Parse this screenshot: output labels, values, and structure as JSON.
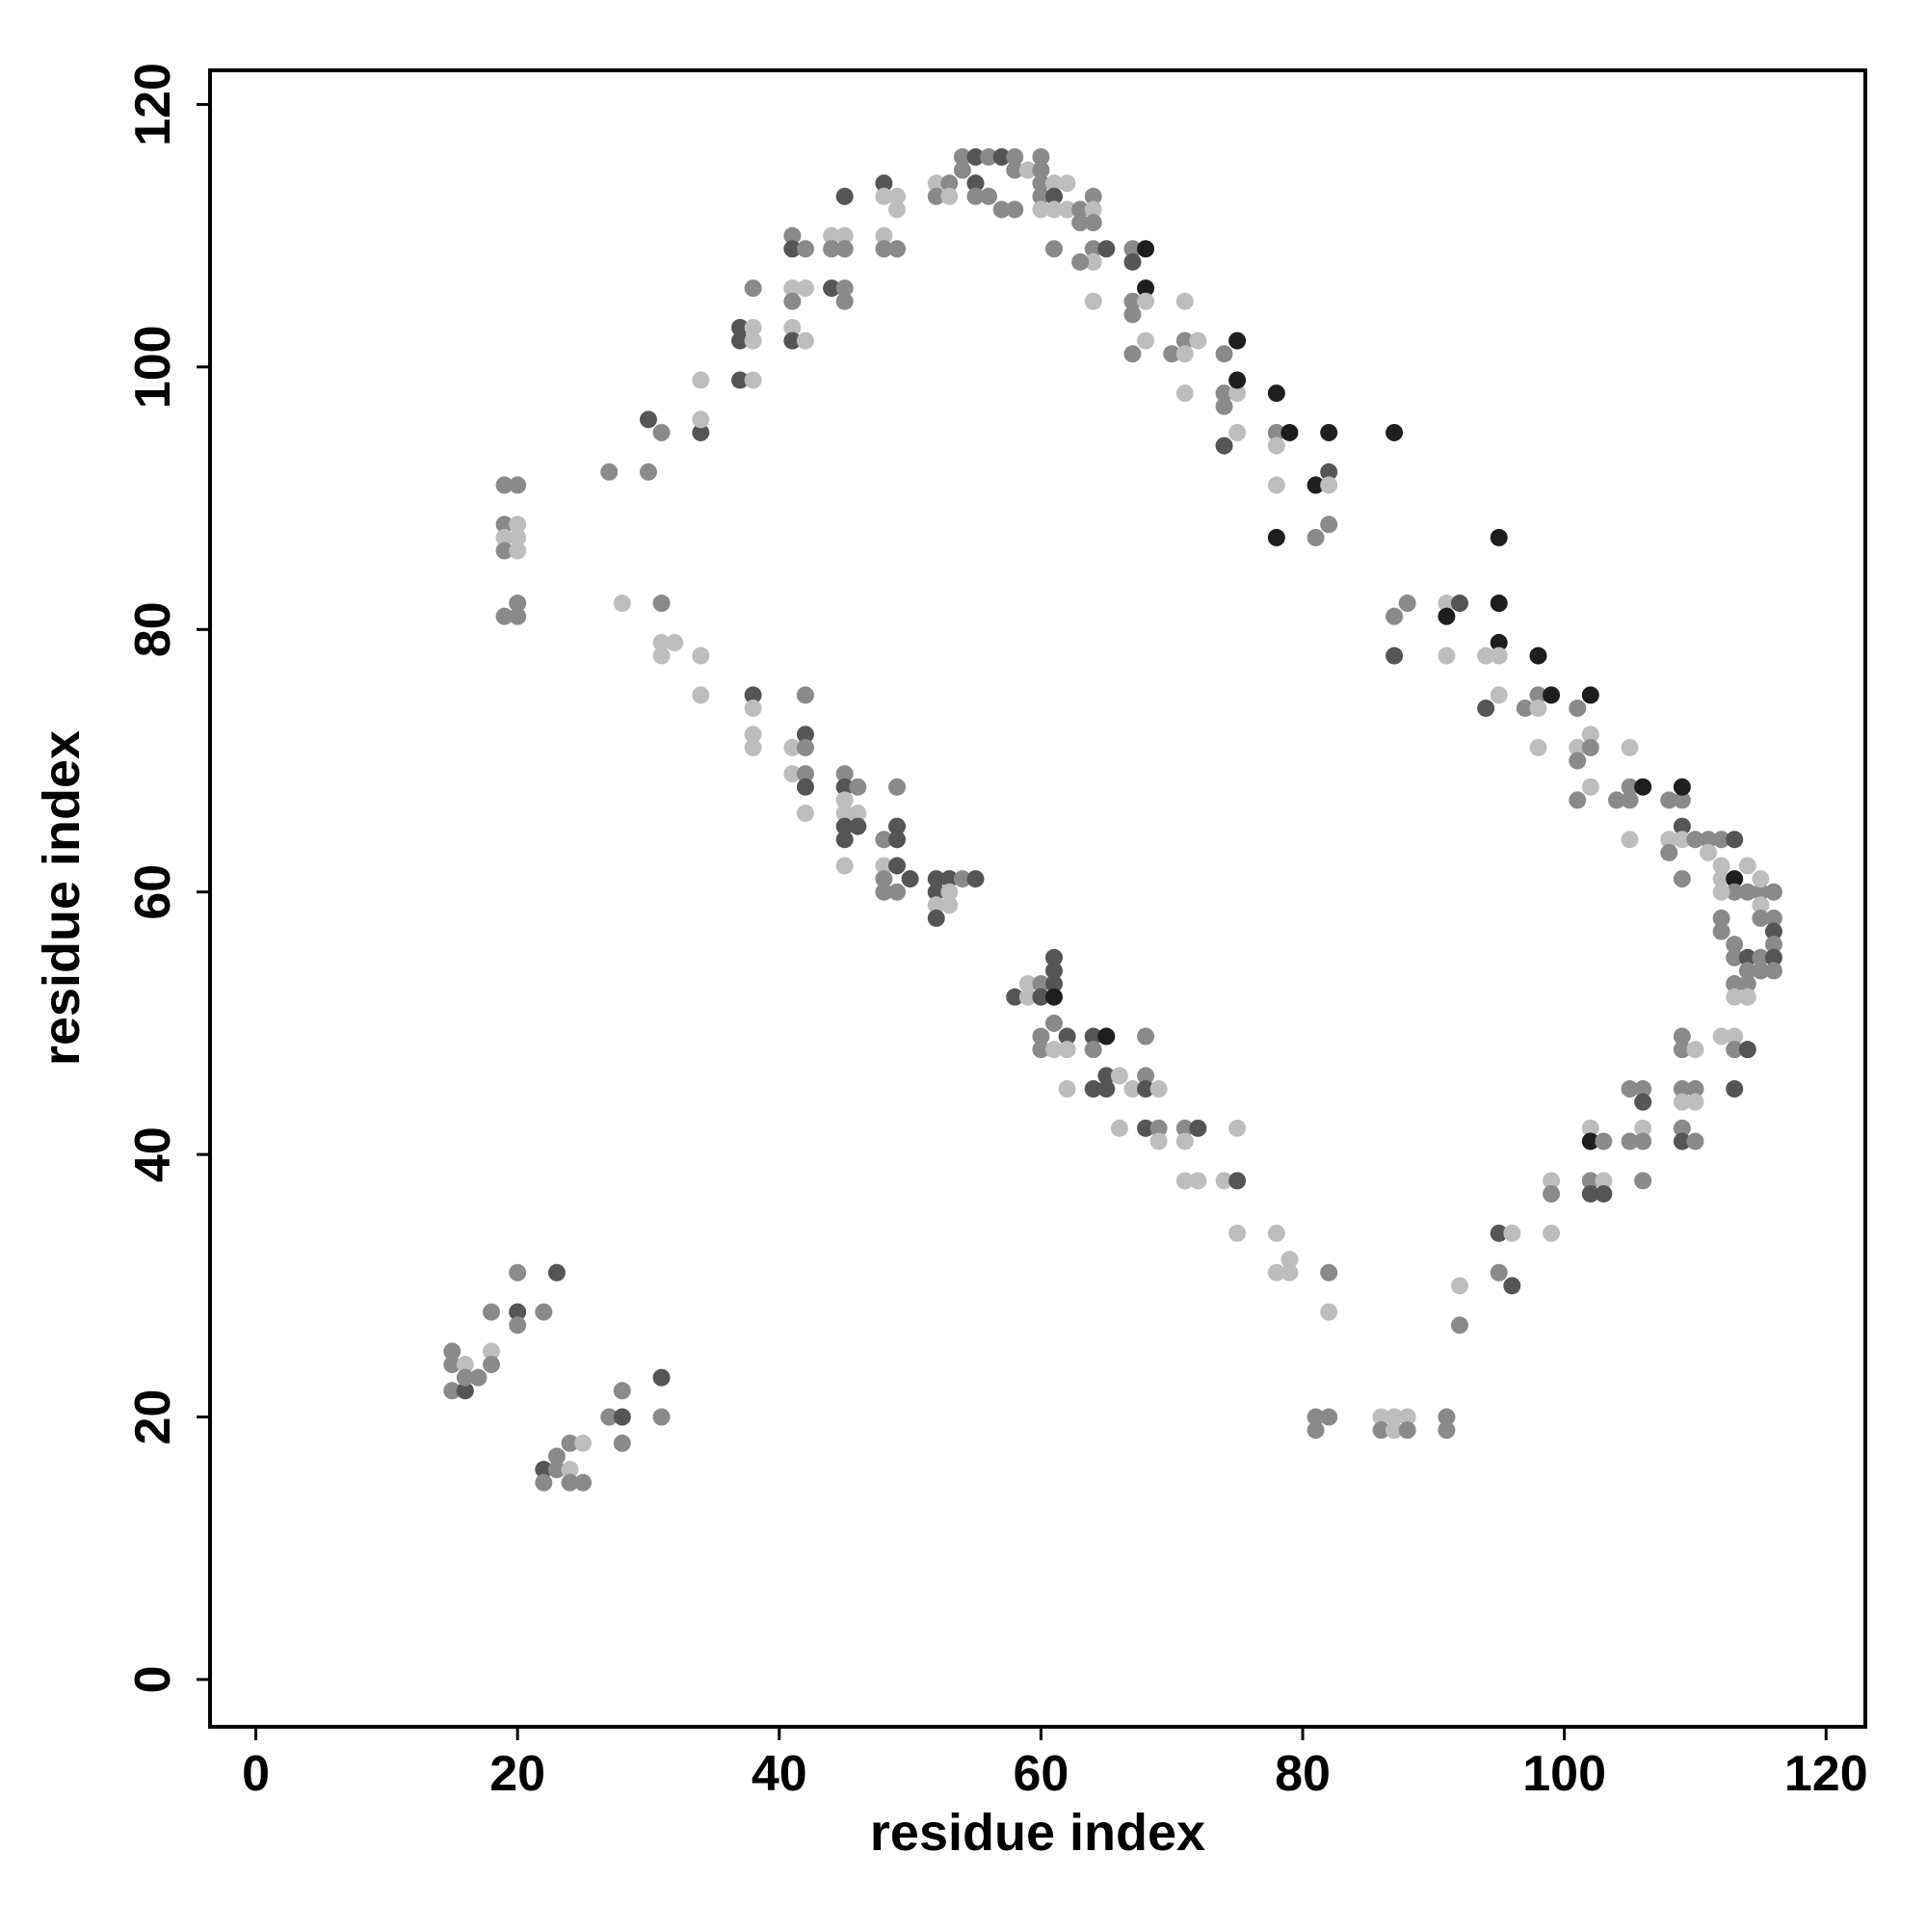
{
  "chart_data": {
    "type": "scatter",
    "x_label": "residue index",
    "y_label": "residue index",
    "xlim": [
      -3.5,
      123
    ],
    "ylim": [
      -3.6,
      122.6
    ],
    "xticks": [
      0,
      20,
      40,
      60,
      80,
      100,
      120
    ],
    "yticks": [
      0,
      20,
      40,
      60,
      80,
      100,
      120
    ],
    "x": [
      15,
      15,
      15,
      16,
      16,
      16,
      17,
      18,
      18,
      18,
      20,
      20,
      20,
      22,
      23,
      22,
      22,
      23,
      23,
      24,
      24,
      24,
      25,
      25,
      27,
      28,
      28,
      28,
      31,
      31,
      19,
      20,
      19,
      20,
      19,
      20,
      19,
      20,
      19,
      20,
      20,
      27,
      30,
      30,
      31,
      34,
      34,
      34,
      28,
      31,
      31,
      31,
      32,
      34,
      34,
      37,
      37,
      38,
      38,
      37,
      38,
      38,
      38,
      38,
      38,
      38,
      41,
      41,
      42,
      41,
      42,
      41,
      41,
      41,
      42,
      41,
      42,
      42,
      41,
      42,
      42,
      42,
      42,
      44,
      45,
      44,
      45,
      44,
      45,
      45,
      45,
      45,
      45,
      46,
      45,
      45,
      46,
      45,
      46,
      45,
      45,
      48,
      48,
      49,
      49,
      48,
      48,
      49,
      48,
      49,
      49,
      48,
      49,
      48,
      48,
      49,
      50,
      49,
      52,
      53,
      54,
      54,
      55,
      55,
      56,
      55,
      56,
      57,
      57,
      58,
      58,
      58,
      59,
      60,
      60,
      60,
      60,
      61,
      61,
      62,
      61,
      62,
      60,
      63,
      63,
      64,
      64,
      64,
      64,
      64,
      63,
      65,
      64,
      61,
      52,
      53,
      52,
      53,
      54,
      55,
      52,
      52,
      53,
      52,
      53,
      58,
      59,
      59,
      60,
      60,
      61,
      61,
      61,
      61,
      61,
      60,
      60,
      61,
      62,
      62,
      62,
      64,
      65,
      64,
      64,
      65,
      65,
      66,
      66,
      67,
      68,
      68,
      68,
      68,
      69,
      69,
      69,
      71,
      72,
      71,
      71,
      72,
      74,
      75,
      75,
      75,
      78,
      78,
      79,
      79,
      82,
      82,
      67,
      68,
      67,
      68,
      67,
      68,
      67,
      68,
      67,
      70,
      71,
      71,
      72,
      71,
      71,
      74,
      75,
      74,
      75,
      75,
      74,
      75,
      74,
      78,
      78,
      79,
      78,
      78,
      78,
      81,
      82,
      82,
      82,
      82,
      81,
      87,
      81,
      82,
      81,
      86,
      87,
      88,
      86,
      87,
      88,
      91,
      91,
      92,
      92,
      95,
      96,
      95,
      96,
      99,
      99,
      99,
      102,
      102,
      103,
      102,
      103,
      102,
      103,
      105,
      106,
      106,
      105,
      106,
      106,
      106,
      109,
      109,
      110,
      109,
      110,
      109,
      110,
      109,
      109,
      110,
      87,
      88,
      87,
      91,
      92,
      91,
      91,
      95,
      95,
      95,
      95,
      94,
      95,
      94,
      97,
      98,
      98,
      98,
      99,
      98,
      101,
      102,
      101,
      102,
      101,
      102,
      102,
      101,
      104,
      105,
      105,
      106,
      105,
      105,
      108,
      109,
      109,
      109,
      108,
      108,
      109,
      109,
      110,
      111,
      111,
      112,
      112,
      113,
      112,
      113,
      114,
      113,
      112,
      114,
      115,
      115,
      116,
      115,
      112,
      115,
      116,
      112,
      116,
      113,
      116,
      113,
      114,
      115,
      116,
      114,
      115,
      116,
      113,
      114,
      113,
      114,
      112,
      113,
      113,
      114,
      113
    ],
    "values": [
      25,
      24,
      22,
      24,
      22,
      23,
      23,
      28,
      25,
      24,
      31,
      28,
      27,
      28,
      31,
      16,
      15,
      17,
      16,
      18,
      16,
      15,
      18,
      15,
      20,
      22,
      20,
      18,
      23,
      20,
      91,
      91,
      88,
      88,
      87,
      87,
      86,
      86,
      81,
      82,
      81,
      92,
      92,
      96,
      95,
      95,
      96,
      99,
      82,
      82,
      79,
      78,
      79,
      78,
      75,
      103,
      102,
      103,
      102,
      99,
      99,
      106,
      75,
      74,
      72,
      71,
      110,
      109,
      109,
      106,
      106,
      105,
      103,
      102,
      102,
      71,
      72,
      71,
      69,
      69,
      68,
      66,
      75,
      110,
      110,
      109,
      109,
      106,
      106,
      105,
      113,
      69,
      68,
      68,
      67,
      66,
      66,
      65,
      65,
      64,
      62,
      114,
      113,
      113,
      112,
      110,
      109,
      109,
      64,
      65,
      64,
      62,
      62,
      61,
      60,
      60,
      61,
      68,
      114,
      114,
      115,
      116,
      116,
      114,
      116,
      113,
      113,
      116,
      112,
      116,
      112,
      115,
      115,
      116,
      115,
      114,
      113,
      114,
      113,
      114,
      112,
      112,
      112,
      112,
      111,
      113,
      112,
      111,
      109,
      108,
      108,
      109,
      105,
      109,
      113,
      113,
      61,
      61,
      61,
      61,
      60,
      59,
      59,
      58,
      60,
      52,
      53,
      52,
      53,
      52,
      55,
      54,
      53,
      52,
      50,
      49,
      48,
      48,
      49,
      48,
      45,
      49,
      49,
      48,
      45,
      46,
      45,
      46,
      42,
      45,
      49,
      46,
      45,
      42,
      45,
      42,
      41,
      42,
      42,
      41,
      38,
      38,
      38,
      38,
      42,
      34,
      34,
      31,
      32,
      31,
      31,
      28,
      109,
      109,
      108,
      106,
      105,
      105,
      104,
      102,
      101,
      101,
      105,
      102,
      102,
      101,
      98,
      101,
      102,
      98,
      98,
      99,
      97,
      95,
      94,
      98,
      95,
      95,
      94,
      91,
      87,
      91,
      92,
      91,
      95,
      88,
      87,
      95,
      20,
      20,
      19,
      20,
      20,
      20,
      19,
      19,
      19,
      20,
      19,
      30,
      27,
      34,
      34,
      31,
      30,
      34,
      38,
      37,
      42,
      41,
      41,
      38,
      38,
      37,
      37,
      45,
      45,
      44,
      41,
      42,
      41,
      38,
      49,
      48,
      48,
      45,
      45,
      44,
      44,
      42,
      41,
      41,
      81,
      82,
      78,
      82,
      82,
      81,
      78,
      87,
      82,
      79,
      78,
      78,
      75,
      74,
      74,
      75,
      74,
      78,
      75,
      71,
      74,
      75,
      71,
      72,
      70,
      71,
      68,
      67,
      67,
      68,
      67,
      68,
      71,
      64,
      67,
      67,
      68,
      65,
      64,
      63,
      64,
      61,
      64,
      64,
      63,
      64,
      62,
      64,
      61,
      61,
      62,
      60,
      60,
      60,
      60,
      61,
      60,
      59,
      58,
      58,
      58,
      57,
      57,
      56,
      56,
      55,
      55,
      55,
      55,
      54,
      54,
      54,
      53,
      53,
      52,
      52,
      49,
      49,
      48,
      48,
      45
    ],
    "colors": [
      "#8a8a8a",
      "#8a8a8a",
      "#8a8a8a",
      "#bdbdbd",
      "#555555",
      "#8a8a8a",
      "#8a8a8a",
      "#8a8a8a",
      "#bdbdbd",
      "#8a8a8a",
      "#8a8a8a",
      "#555555",
      "#8a8a8a",
      "#8a8a8a",
      "#555555",
      "#555555",
      "#8a8a8a",
      "#8a8a8a",
      "#8a8a8a",
      "#8a8a8a",
      "#bdbdbd",
      "#8a8a8a",
      "#bdbdbd",
      "#8a8a8a",
      "#8a8a8a",
      "#8a8a8a",
      "#555555",
      "#8a8a8a",
      "#555555",
      "#8a8a8a",
      "#8a8a8a",
      "#8a8a8a",
      "#8a8a8a",
      "#bdbdbd",
      "#bdbdbd",
      "#bdbdbd",
      "#8a8a8a",
      "#bdbdbd",
      "#8a8a8a",
      "#8a8a8a",
      "#8a8a8a",
      "#8a8a8a",
      "#8a8a8a",
      "#555555",
      "#8a8a8a",
      "#555555",
      "#bdbdbd",
      "#bdbdbd",
      "#bdbdbd",
      "#8a8a8a",
      "#bdbdbd",
      "#bdbdbd",
      "#bdbdbd",
      "#bdbdbd",
      "#bdbdbd",
      "#555555",
      "#555555",
      "#bdbdbd",
      "#bdbdbd",
      "#555555",
      "#bdbdbd",
      "#8a8a8a",
      "#555555",
      "#bdbdbd",
      "#bdbdbd",
      "#bdbdbd",
      "#8a8a8a",
      "#555555",
      "#8a8a8a",
      "#bdbdbd",
      "#bdbdbd",
      "#8a8a8a",
      "#bdbdbd",
      "#555555",
      "#bdbdbd",
      "#bdbdbd",
      "#555555",
      "#8a8a8a",
      "#bdbdbd",
      "#8a8a8a",
      "#555555",
      "#bdbdbd",
      "#8a8a8a",
      "#bdbdbd",
      "#bdbdbd",
      "#8a8a8a",
      "#8a8a8a",
      "#555555",
      "#8a8a8a",
      "#8a8a8a",
      "#555555",
      "#8a8a8a",
      "#555555",
      "#8a8a8a",
      "#bdbdbd",
      "#bdbdbd",
      "#bdbdbd",
      "#555555",
      "#555555",
      "#555555",
      "#bdbdbd",
      "#555555",
      "#bdbdbd",
      "#bdbdbd",
      "#bdbdbd",
      "#bdbdbd",
      "#8a8a8a",
      "#8a8a8a",
      "#8a8a8a",
      "#555555",
      "#555555",
      "#bdbdbd",
      "#555555",
      "#8a8a8a",
      "#8a8a8a",
      "#8a8a8a",
      "#555555",
      "#8a8a8a",
      "#bdbdbd",
      "#8a8a8a",
      "#8a8a8a",
      "#8a8a8a",
      "#555555",
      "#555555",
      "#8a8a8a",
      "#8a8a8a",
      "#8a8a8a",
      "#555555",
      "#8a8a8a",
      "#8a8a8a",
      "#8a8a8a",
      "#8a8a8a",
      "#bdbdbd",
      "#8a8a8a",
      "#8a8a8a",
      "#8a8a8a",
      "#8a8a8a",
      "#bdbdbd",
      "#555555",
      "#bdbdbd",
      "#bdbdbd",
      "#bdbdbd",
      "#bdbdbd",
      "#8a8a8a",
      "#8a8a8a",
      "#8a8a8a",
      "#bdbdbd",
      "#8a8a8a",
      "#8a8a8a",
      "#bdbdbd",
      "#8a8a8a",
      "#555555",
      "#bdbdbd",
      "#8a8a8a",
      "#8a8a8a",
      "#bdbdbd",
      "#555555",
      "#555555",
      "#8a8a8a",
      "#555555",
      "#555555",
      "#bdbdbd",
      "#bdbdbd",
      "#555555",
      "#bdbdbd",
      "#555555",
      "#bdbdbd",
      "#bdbdbd",
      "#8a8a8a",
      "#555555",
      "#555555",
      "#555555",
      "#555555",
      "#1e1e1e",
      "#8a8a8a",
      "#8a8a8a",
      "#8a8a8a",
      "#bdbdbd",
      "#555555",
      "#bdbdbd",
      "#bdbdbd",
      "#555555",
      "#1e1e1e",
      "#8a8a8a",
      "#555555",
      "#555555",
      "#555555",
      "#bdbdbd",
      "#bdbdbd",
      "#bdbdbd",
      "#8a8a8a",
      "#8a8a8a",
      "#555555",
      "#555555",
      "#bdbdbd",
      "#8a8a8a",
      "#bdbdbd",
      "#8a8a8a",
      "#555555",
      "#bdbdbd",
      "#bdbdbd",
      "#bdbdbd",
      "#bdbdbd",
      "#555555",
      "#bdbdbd",
      "#bdbdbd",
      "#bdbdbd",
      "#bdbdbd",
      "#bdbdbd",
      "#bdbdbd",
      "#8a8a8a",
      "#bdbdbd",
      "#8a8a8a",
      "#1e1e1e",
      "#555555",
      "#1e1e1e",
      "#8a8a8a",
      "#bdbdbd",
      "#8a8a8a",
      "#bdbdbd",
      "#8a8a8a",
      "#8a8a8a",
      "#bdbdbd",
      "#8a8a8a",
      "#bdbdbd",
      "#bdbdbd",
      "#bdbdbd",
      "#8a8a8a",
      "#1e1e1e",
      "#8a8a8a",
      "#bdbdbd",
      "#1e1e1e",
      "#8a8a8a",
      "#bdbdbd",
      "#555555",
      "#1e1e1e",
      "#8a8a8a",
      "#1e1e1e",
      "#bdbdbd",
      "#bdbdbd",
      "#1e1e1e",
      "#1e1e1e",
      "#555555",
      "#bdbdbd",
      "#1e1e1e",
      "#8a8a8a",
      "#8a8a8a",
      "#1e1e1e",
      "#8a8a8a",
      "#8a8a8a",
      "#8a8a8a",
      "#bdbdbd",
      "#bdbdbd",
      "#bdbdbd",
      "#8a8a8a",
      "#bdbdbd",
      "#8a8a8a",
      "#8a8a8a",
      "#8a8a8a",
      "#bdbdbd",
      "#8a8a8a",
      "#555555",
      "#bdbdbd",
      "#8a8a8a",
      "#555555",
      "#bdbdbd",
      "#bdbdbd",
      "#8a8a8a",
      "#bdbdbd",
      "#1e1e1e",
      "#8a8a8a",
      "#8a8a8a",
      "#bdbdbd",
      "#555555",
      "#555555",
      "#8a8a8a",
      "#8a8a8a",
      "#555555",
      "#8a8a8a",
      "#bdbdbd",
      "#8a8a8a",
      "#8a8a8a",
      "#8a8a8a",
      "#8a8a8a",
      "#bdbdbd",
      "#8a8a8a",
      "#8a8a8a",
      "#bdbdbd",
      "#bdbdbd",
      "#8a8a8a",
      "#555555",
      "#8a8a8a",
      "#8a8a8a",
      "#8a8a8a",
      "#555555",
      "#bdbdbd",
      "#555555",
      "#1e1e1e",
      "#bdbdbd",
      "#1e1e1e",
      "#1e1e1e",
      "#1e1e1e",
      "#bdbdbd",
      "#bdbdbd",
      "#bdbdbd",
      "#555555",
      "#8a8a8a",
      "#8a8a8a",
      "#bdbdbd",
      "#1e1e1e",
      "#1e1e1e",
      "#bdbdbd",
      "#8a8a8a",
      "#1e1e1e",
      "#bdbdbd",
      "#bdbdbd",
      "#8a8a8a",
      "#8a8a8a",
      "#bdbdbd",
      "#8a8a8a",
      "#8a8a8a",
      "#8a8a8a",
      "#8a8a8a",
      "#1e1e1e",
      "#bdbdbd",
      "#bdbdbd",
      "#8a8a8a",
      "#8a8a8a",
      "#1e1e1e",
      "#555555",
      "#bdbdbd",
      "#8a8a8a",
      "#bdbdbd",
      "#8a8a8a",
      "#8a8a8a",
      "#8a8a8a",
      "#bdbdbd",
      "#8a8a8a",
      "#bdbdbd",
      "#555555",
      "#bdbdbd",
      "#1e1e1e",
      "#bdbdbd",
      "#8a8a8a",
      "#bdbdbd",
      "#8a8a8a",
      "#8a8a8a",
      "#bdbdbd",
      "#8a8a8a",
      "#bdbdbd",
      "#8a8a8a",
      "#8a8a8a",
      "#8a8a8a",
      "#8a8a8a",
      "#555555",
      "#8a8a8a",
      "#8a8a8a",
      "#8a8a8a",
      "#555555",
      "#8a8a8a",
      "#555555",
      "#8a8a8a",
      "#8a8a8a",
      "#8a8a8a",
      "#8a8a8a",
      "#8a8a8a",
      "#bdbdbd",
      "#bdbdbd",
      "#bdbdbd",
      "#bdbdbd",
      "#8a8a8a",
      "#555555",
      "#555555"
    ]
  }
}
